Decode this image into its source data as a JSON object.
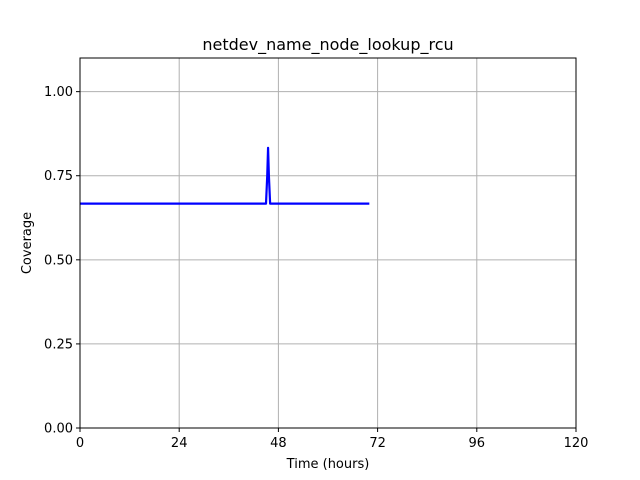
{
  "chart_data": {
    "type": "line",
    "title": "netdev_name_node_lookup_rcu",
    "xlabel": "Time (hours)",
    "ylabel": "Coverage",
    "xlim": [
      0,
      120
    ],
    "ylim": [
      0,
      1.1
    ],
    "x_ticks": [
      0,
      24,
      48,
      72,
      96,
      120
    ],
    "x_tick_labels": [
      "0",
      "24",
      "48",
      "72",
      "96",
      "120"
    ],
    "y_ticks": [
      0,
      0.25,
      0.5,
      0.75,
      1.0
    ],
    "y_tick_labels": [
      "0.00",
      "0.25",
      "0.50",
      "0.75",
      "1.00"
    ],
    "grid": true,
    "series": [
      {
        "color": "#0000ff",
        "x": [
          0,
          45,
          45.3,
          45.5,
          45.7,
          46,
          70
        ],
        "y": [
          0.667,
          0.667,
          0.75,
          0.833,
          0.75,
          0.667,
          0.667
        ]
      }
    ]
  }
}
